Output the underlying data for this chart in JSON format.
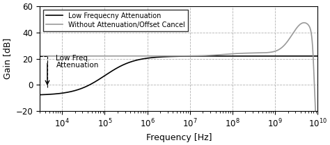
{
  "title": "",
  "xlabel": "Frequency [Hz]",
  "ylabel": "Gain [dB]",
  "xlim": [
    3000.0,
    10000000000.0
  ],
  "ylim": [
    -20,
    60
  ],
  "yticks": [
    -20,
    0,
    20,
    40,
    60
  ],
  "legend1": "Low Frequecny Attenuation",
  "legend2": "Without Attenuation/Offset Cancel",
  "annotation_text1": "Low Freq.",
  "annotation_text2": "Attenuation",
  "ann_x": 4500.0,
  "ann_y_top": 22,
  "ann_y_bot": -2,
  "curve1_color": "#000000",
  "curve2_color": "#999999",
  "grid_color": "#aaaaaa"
}
